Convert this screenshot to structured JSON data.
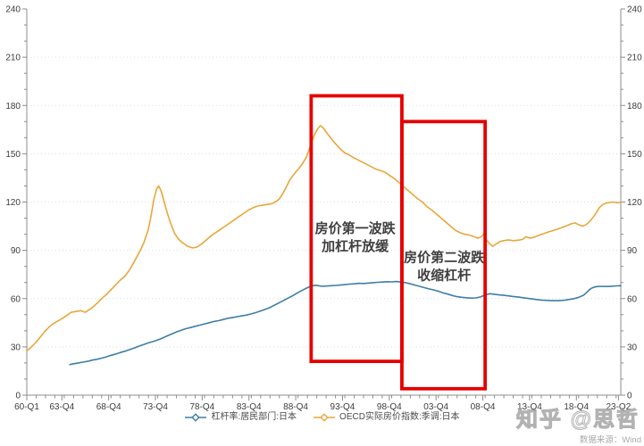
{
  "watermark": {
    "text": "知乎 @思哲"
  },
  "source": {
    "text": "数据来源：Wind"
  },
  "chart_data": {
    "type": "line",
    "title": "",
    "xlabel": "",
    "ylabel": "",
    "style": {
      "axis_color": "#8c8c8c",
      "grid_color": "#dcdcdc",
      "tick_label_color": "#3c3c3c",
      "annotation_color": "#3f3f3f",
      "highlight_color": "#e60000",
      "legend_text_color": "#4a4a4a"
    },
    "x_axis": {
      "domain": [
        1960,
        2023.5
      ],
      "minor_tick_every_years": 1,
      "ticks": [
        {
          "label": "60-Q1",
          "t": 1960.0
        },
        {
          "label": "63-Q4",
          "t": 1963.75
        },
        {
          "label": "68-Q4",
          "t": 1968.75
        },
        {
          "label": "73-Q4",
          "t": 1973.75
        },
        {
          "label": "78-Q4",
          "t": 1978.75
        },
        {
          "label": "83-Q4",
          "t": 1983.75
        },
        {
          "label": "88-Q4",
          "t": 1988.75
        },
        {
          "label": "93-Q4",
          "t": 1993.75
        },
        {
          "label": "98-Q4",
          "t": 1998.75
        },
        {
          "label": "03-Q4",
          "t": 2003.75
        },
        {
          "label": "08-Q4",
          "t": 2008.75
        },
        {
          "label": "13-Q4",
          "t": 2013.75
        },
        {
          "label": "18-Q4",
          "t": 2018.75
        },
        {
          "label": "23-Q2",
          "t": 2023.25
        }
      ]
    },
    "y_axis": {
      "min": 0,
      "max": 240,
      "major_step": 30,
      "minor_step": 10,
      "mirrored_right": true
    },
    "grid": {
      "horizontal_dotted": true,
      "values": [
        30,
        60,
        90,
        120,
        150,
        180,
        210
      ]
    },
    "series": [
      {
        "name": "杠杆率:居民部门:日本",
        "color": "#3d7ea6",
        "points": [
          [
            1964.6,
            19
          ],
          [
            1965,
            19.5
          ],
          [
            1965.5,
            20
          ],
          [
            1966,
            20.5
          ],
          [
            1966.5,
            21
          ],
          [
            1967,
            21.8
          ],
          [
            1967.5,
            22.3
          ],
          [
            1968,
            23
          ],
          [
            1968.5,
            23.8
          ],
          [
            1969,
            24.8
          ],
          [
            1969.5,
            25.5
          ],
          [
            1970,
            26.5
          ],
          [
            1970.5,
            27.3
          ],
          [
            1971,
            28.3
          ],
          [
            1971.5,
            29.3
          ],
          [
            1972,
            30.5
          ],
          [
            1972.5,
            31.5
          ],
          [
            1973,
            32.5
          ],
          [
            1973.5,
            33.3
          ],
          [
            1974,
            34.3
          ],
          [
            1974.5,
            35.5
          ],
          [
            1975,
            36.8
          ],
          [
            1975.5,
            38
          ],
          [
            1976,
            39.3
          ],
          [
            1976.5,
            40.3
          ],
          [
            1977,
            41.3
          ],
          [
            1977.5,
            42
          ],
          [
            1978,
            42.8
          ],
          [
            1978.5,
            43.5
          ],
          [
            1979,
            44.3
          ],
          [
            1979.5,
            45
          ],
          [
            1980,
            45.8
          ],
          [
            1980.5,
            46.3
          ],
          [
            1981,
            47
          ],
          [
            1981.5,
            47.8
          ],
          [
            1982,
            48.3
          ],
          [
            1982.5,
            48.8
          ],
          [
            1983,
            49.3
          ],
          [
            1983.5,
            49.8
          ],
          [
            1984,
            50.5
          ],
          [
            1984.5,
            51.3
          ],
          [
            1985,
            52.3
          ],
          [
            1985.5,
            53.3
          ],
          [
            1986,
            54.5
          ],
          [
            1986.5,
            56
          ],
          [
            1987,
            57.5
          ],
          [
            1987.5,
            59
          ],
          [
            1988,
            60.5
          ],
          [
            1988.5,
            62
          ],
          [
            1989,
            63.8
          ],
          [
            1989.5,
            65.3
          ],
          [
            1990,
            66.8
          ],
          [
            1990.4,
            67.8
          ],
          [
            1990.8,
            68.3
          ],
          [
            1991.2,
            68
          ],
          [
            1991.6,
            67.6
          ],
          [
            1992,
            67.8
          ],
          [
            1992.5,
            68
          ],
          [
            1993,
            68.2
          ],
          [
            1993.5,
            68.4
          ],
          [
            1994,
            68.7
          ],
          [
            1994.5,
            69
          ],
          [
            1995,
            69.2
          ],
          [
            1995.5,
            69.5
          ],
          [
            1996,
            69.4
          ],
          [
            1996.5,
            69.6
          ],
          [
            1997,
            69.9
          ],
          [
            1997.5,
            70.1
          ],
          [
            1998,
            70.3
          ],
          [
            1998.5,
            70.5
          ],
          [
            1999,
            70.4
          ],
          [
            1999.5,
            70.6
          ],
          [
            2000,
            70.3
          ],
          [
            2000.5,
            69.9
          ],
          [
            2001,
            69.2
          ],
          [
            2001.5,
            68.4
          ],
          [
            2002,
            67.6
          ],
          [
            2002.5,
            66.8
          ],
          [
            2003,
            66
          ],
          [
            2003.5,
            65.4
          ],
          [
            2004,
            64.6
          ],
          [
            2004.5,
            63.6
          ],
          [
            2005,
            62.8
          ],
          [
            2005.5,
            61.9
          ],
          [
            2006,
            61.2
          ],
          [
            2006.5,
            60.8
          ],
          [
            2007,
            60.5
          ],
          [
            2007.5,
            60.3
          ],
          [
            2008,
            60.4
          ],
          [
            2008.5,
            61
          ],
          [
            2009,
            62.3
          ],
          [
            2009.5,
            63
          ],
          [
            2010,
            62.7
          ],
          [
            2010.5,
            62.3
          ],
          [
            2011,
            62
          ],
          [
            2011.5,
            61.7
          ],
          [
            2012,
            61.3
          ],
          [
            2012.5,
            61
          ],
          [
            2013,
            60.6
          ],
          [
            2013.5,
            60.2
          ],
          [
            2014,
            59.8
          ],
          [
            2014.5,
            59.4
          ],
          [
            2015,
            59.1
          ],
          [
            2015.5,
            58.9
          ],
          [
            2016,
            58.8
          ],
          [
            2016.5,
            58.7
          ],
          [
            2017,
            58.8
          ],
          [
            2017.5,
            59
          ],
          [
            2018,
            59.5
          ],
          [
            2018.5,
            60
          ],
          [
            2019,
            60.8
          ],
          [
            2019.5,
            62
          ],
          [
            2019.8,
            63.5
          ],
          [
            2020.1,
            65.3
          ],
          [
            2020.4,
            66.5
          ],
          [
            2020.7,
            67.2
          ],
          [
            2021,
            67.5
          ],
          [
            2021.5,
            67.6
          ],
          [
            2022,
            67.5
          ],
          [
            2022.5,
            67.7
          ],
          [
            2023,
            67.9
          ],
          [
            2023.5,
            68
          ]
        ]
      },
      {
        "name": "OECD实际房价指数:季调:日本",
        "color": "#e9a63b",
        "points": [
          [
            1960,
            27.5
          ],
          [
            1960.5,
            30
          ],
          [
            1961,
            33
          ],
          [
            1961.5,
            36.5
          ],
          [
            1962,
            40
          ],
          [
            1962.5,
            43
          ],
          [
            1963,
            45
          ],
          [
            1963.75,
            47.5
          ],
          [
            1964.25,
            49.5
          ],
          [
            1964.75,
            51.5
          ],
          [
            1965.25,
            52
          ],
          [
            1965.75,
            52.5
          ],
          [
            1966.25,
            51.5
          ],
          [
            1966.9,
            54
          ],
          [
            1967.5,
            57
          ],
          [
            1968,
            60
          ],
          [
            1968.5,
            62.5
          ],
          [
            1969,
            65.5
          ],
          [
            1969.5,
            68.5
          ],
          [
            1970,
            71.5
          ],
          [
            1970.5,
            74
          ],
          [
            1971,
            78
          ],
          [
            1971.5,
            83
          ],
          [
            1972,
            88.5
          ],
          [
            1972.5,
            94.5
          ],
          [
            1973,
            103
          ],
          [
            1973.3,
            112
          ],
          [
            1973.6,
            122
          ],
          [
            1973.9,
            128.5
          ],
          [
            1974.1,
            130
          ],
          [
            1974.35,
            127
          ],
          [
            1974.7,
            120
          ],
          [
            1975,
            113.5
          ],
          [
            1975.4,
            106.5
          ],
          [
            1975.8,
            100.5
          ],
          [
            1976.2,
            97
          ],
          [
            1976.7,
            94.5
          ],
          [
            1977.2,
            92.5
          ],
          [
            1977.7,
            91.5
          ],
          [
            1978.2,
            92
          ],
          [
            1978.7,
            94
          ],
          [
            1979.2,
            96.5
          ],
          [
            1979.7,
            99
          ],
          [
            1980.2,
            101
          ],
          [
            1980.7,
            103
          ],
          [
            1981.2,
            105
          ],
          [
            1981.7,
            107
          ],
          [
            1982.2,
            109
          ],
          [
            1982.7,
            111
          ],
          [
            1983.2,
            113
          ],
          [
            1983.7,
            115
          ],
          [
            1984.2,
            116.5
          ],
          [
            1984.7,
            117.5
          ],
          [
            1985.2,
            118
          ],
          [
            1985.7,
            118.5
          ],
          [
            1986.2,
            119
          ],
          [
            1986.7,
            120.5
          ],
          [
            1987,
            122
          ],
          [
            1987.4,
            125.5
          ],
          [
            1987.8,
            130
          ],
          [
            1988.1,
            133.5
          ],
          [
            1988.4,
            136
          ],
          [
            1988.8,
            139
          ],
          [
            1989.1,
            141
          ],
          [
            1989.5,
            144
          ],
          [
            1989.9,
            148
          ],
          [
            1990.2,
            153
          ],
          [
            1990.5,
            158
          ],
          [
            1990.8,
            162.5
          ],
          [
            1991.1,
            165.5
          ],
          [
            1991.4,
            167.5
          ],
          [
            1991.7,
            166
          ],
          [
            1992,
            163.5
          ],
          [
            1992.4,
            160.5
          ],
          [
            1992.8,
            157.5
          ],
          [
            1993.2,
            155
          ],
          [
            1993.6,
            152.5
          ],
          [
            1994,
            150.5
          ],
          [
            1994.4,
            149.5
          ],
          [
            1994.8,
            148
          ],
          [
            1995.3,
            146.5
          ],
          [
            1995.8,
            145
          ],
          [
            1996.3,
            143.5
          ],
          [
            1996.8,
            142
          ],
          [
            1997.3,
            140.5
          ],
          [
            1997.8,
            139.5
          ],
          [
            1998.3,
            138.5
          ],
          [
            1998.8,
            136.5
          ],
          [
            1999.3,
            134.5
          ],
          [
            1999.8,
            132
          ],
          [
            2000.3,
            129.5
          ],
          [
            2000.8,
            127
          ],
          [
            2001.3,
            124.5
          ],
          [
            2001.8,
            122
          ],
          [
            2002.3,
            120
          ],
          [
            2002.8,
            117
          ],
          [
            2003.3,
            115
          ],
          [
            2003.8,
            112.5
          ],
          [
            2004.3,
            110
          ],
          [
            2004.8,
            107.5
          ],
          [
            2005.3,
            105
          ],
          [
            2005.8,
            102.5
          ],
          [
            2006.3,
            101
          ],
          [
            2006.8,
            100
          ],
          [
            2007.3,
            99.5
          ],
          [
            2007.8,
            98.5
          ],
          [
            2008.2,
            97.5
          ],
          [
            2008.6,
            98.5
          ],
          [
            2008.9,
            100.5
          ],
          [
            2009.1,
            97
          ],
          [
            2009.4,
            94.5
          ],
          [
            2009.8,
            92.5
          ],
          [
            2010.2,
            94
          ],
          [
            2010.6,
            95.5
          ],
          [
            2011,
            96
          ],
          [
            2011.5,
            96.5
          ],
          [
            2012,
            96
          ],
          [
            2012.5,
            96.3
          ],
          [
            2013,
            96.8
          ],
          [
            2013.4,
            98.5
          ],
          [
            2013.8,
            97.5
          ],
          [
            2014.3,
            98.3
          ],
          [
            2014.8,
            99.5
          ],
          [
            2015.3,
            100.5
          ],
          [
            2015.8,
            101.5
          ],
          [
            2016.3,
            102.3
          ],
          [
            2016.8,
            103.3
          ],
          [
            2017.3,
            104.3
          ],
          [
            2017.8,
            105.5
          ],
          [
            2018.2,
            106.5
          ],
          [
            2018.6,
            107
          ],
          [
            2019,
            106
          ],
          [
            2019.4,
            105
          ],
          [
            2019.8,
            106
          ],
          [
            2020.2,
            108
          ],
          [
            2020.6,
            111
          ],
          [
            2020.9,
            113.5
          ],
          [
            2021.2,
            116.5
          ],
          [
            2021.6,
            118.5
          ],
          [
            2021.9,
            119.3
          ],
          [
            2022.3,
            119.8
          ],
          [
            2022.7,
            120
          ],
          [
            2023.1,
            119.6
          ],
          [
            2023.5,
            119.8
          ]
        ]
      }
    ],
    "annotations": [
      {
        "lines": [
          "房价第一波跌",
          "加杠杆放缓"
        ],
        "x": 1995.1,
        "y": 101,
        "box": {
          "x0": 1990.4,
          "x1": 2000.1,
          "y0": 21,
          "y1": 186
        }
      },
      {
        "lines": [
          "房价第二波跌",
          "收缩杠杆"
        ],
        "x": 2004.6,
        "y": 83,
        "box": {
          "x0": 2000.1,
          "x1": 2009.0,
          "y0": 4,
          "y1": 170
        }
      }
    ],
    "legend_position": "bottom-center"
  }
}
